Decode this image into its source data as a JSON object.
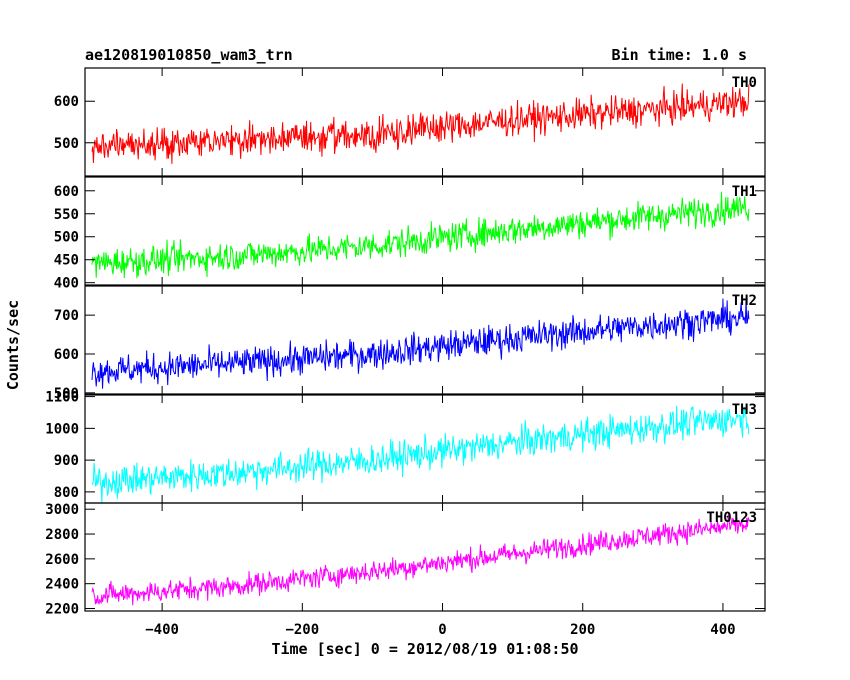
{
  "header": {
    "title": "ae120819010850_wam3_trn",
    "bin_time": "Bin time: 1.0 s"
  },
  "chart_data": {
    "type": "line",
    "title": "ae120819010850_wam3_trn",
    "subtitle": "Bin time: 1.0 s",
    "xlabel": "Time [sec] 0 = 2012/08/19 01:08:50",
    "ylabel": "Counts/sec",
    "xlim": [
      -510,
      460
    ],
    "x_ticks": [
      -400,
      -200,
      0,
      200,
      400
    ],
    "x_tick_labels": [
      "−400",
      "−200",
      "0",
      "200",
      "400"
    ],
    "x_range": [
      -500,
      437
    ],
    "grid": false,
    "panels": [
      {
        "label": "TH0",
        "color": "#ff0000",
        "ylim": [
          420,
          680
        ],
        "yticks": [
          500,
          600
        ],
        "ytick_labels": [
          "500",
          "600"
        ],
        "trend": [
          [
            -500,
            490
          ],
          [
            -300,
            505
          ],
          [
            -100,
            520
          ],
          [
            100,
            555
          ],
          [
            300,
            580
          ],
          [
            437,
            600
          ]
        ],
        "noise": 32
      },
      {
        "label": "TH1",
        "color": "#00ff00",
        "ylim": [
          395,
          630
        ],
        "yticks": [
          400,
          450,
          500,
          550,
          600
        ],
        "ytick_labels": [
          "400",
          "450",
          "500",
          "550",
          "600"
        ],
        "trend": [
          [
            -500,
            442
          ],
          [
            -300,
            458
          ],
          [
            -100,
            480
          ],
          [
            100,
            515
          ],
          [
            300,
            545
          ],
          [
            437,
            565
          ]
        ],
        "noise": 27
      },
      {
        "label": "TH2",
        "color": "#0000ff",
        "ylim": [
          497,
          775
        ],
        "yticks": [
          500,
          600,
          700
        ],
        "ytick_labels": [
          "500",
          "600",
          "700"
        ],
        "trend": [
          [
            -500,
            555
          ],
          [
            -300,
            575
          ],
          [
            -100,
            600
          ],
          [
            100,
            640
          ],
          [
            300,
            675
          ],
          [
            437,
            695
          ]
        ],
        "noise": 33
      },
      {
        "label": "TH3",
        "color": "#00ffff",
        "ylim": [
          765,
          1105
        ],
        "yticks": [
          800,
          900,
          1000,
          1100
        ],
        "ytick_labels": [
          "800",
          "900",
          "1000",
          "1100"
        ],
        "trend": [
          [
            -500,
            830
          ],
          [
            -300,
            860
          ],
          [
            -100,
            900
          ],
          [
            100,
            955
          ],
          [
            300,
            1005
          ],
          [
            437,
            1035
          ]
        ],
        "noise": 42
      },
      {
        "label": "TH0123",
        "color": "#ff00ff",
        "ylim": [
          2180,
          3050
        ],
        "yticks": [
          2200,
          2400,
          2600,
          2800,
          3000
        ],
        "ytick_labels": [
          "2200",
          "2400",
          "2600",
          "2800",
          "3000"
        ],
        "trend": [
          [
            -500,
            2300
          ],
          [
            -300,
            2380
          ],
          [
            -100,
            2500
          ],
          [
            100,
            2640
          ],
          [
            300,
            2790
          ],
          [
            437,
            2880
          ]
        ],
        "noise": 75
      }
    ]
  }
}
